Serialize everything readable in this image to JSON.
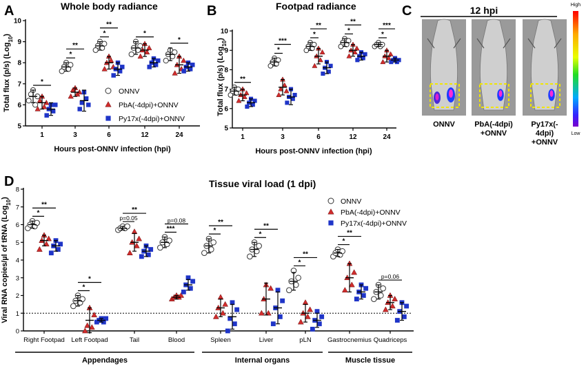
{
  "panels": {
    "A": {
      "letter": "A",
      "title": "Whole body radiance"
    },
    "B": {
      "letter": "B",
      "title": "Footpad radiance"
    },
    "C": {
      "letter": "C",
      "title": "12 hpi",
      "mice": [
        "ONNV",
        "PbA(-4dpi)\n+ONNV",
        "Py17x(-\n4dpi)\n+ONNV"
      ],
      "colorbar": {
        "high": "High",
        "low": "Low"
      }
    },
    "D": {
      "letter": "D",
      "title": "Tissue viral load (1 dpi)"
    }
  },
  "legend_AB": [
    "ONNV",
    "PbA(-4dpi)+ONNV",
    "Py17x(-4dpi)+ONNV"
  ],
  "legend_D": [
    "ONNV",
    "PbA(-4dpi)+ONNV",
    "Py17x(-4dpi)+ONNV"
  ],
  "colors": {
    "onnv": "#ffffff",
    "pba": "#d02c2c",
    "py17x": "#1f35c8",
    "black": "#000000"
  },
  "chart_data": [
    {
      "type": "scatter",
      "title": "Whole body radiance",
      "xlabel": "Hours post-ONNV infection (hpi)",
      "ylabel": "Total flux (p/s) (Log10)",
      "categories": [
        "1",
        "3",
        "6",
        "12",
        "24"
      ],
      "ylim": [
        5,
        10
      ],
      "yticks": [
        5,
        6,
        7,
        8,
        9,
        10
      ],
      "series": [
        {
          "name": "ONNV",
          "marker": "circle",
          "means": [
            6.4,
            7.8,
            8.8,
            8.7,
            8.4
          ],
          "sd": [
            0.3,
            0.2,
            0.2,
            0.3,
            0.3
          ],
          "points": [
            [
              6.2,
              6.5,
              6.7,
              6.0,
              6.4
            ],
            [
              7.6,
              7.8,
              8.0,
              7.7,
              7.9
            ],
            [
              8.6,
              8.8,
              9.0,
              8.7,
              8.9
            ],
            [
              8.4,
              8.7,
              9.0,
              8.6,
              8.8
            ],
            [
              8.1,
              8.4,
              8.6,
              8.3,
              8.5
            ]
          ]
        },
        {
          "name": "PbA(-4dpi)+ONNV",
          "marker": "triangle",
          "means": [
            6.1,
            6.6,
            8.0,
            8.6,
            7.9
          ],
          "sd": [
            0.3,
            0.2,
            0.3,
            0.3,
            0.4
          ],
          "points": [
            [
              5.8,
              6.2,
              6.4,
              5.9,
              6.1
            ],
            [
              6.4,
              6.7,
              6.8,
              6.5,
              6.6
            ],
            [
              7.7,
              8.0,
              8.3,
              8.1,
              7.8
            ],
            [
              8.3,
              8.6,
              8.9,
              8.5,
              8.7
            ],
            [
              7.5,
              7.9,
              8.3,
              7.7,
              8.1
            ]
          ]
        },
        {
          "name": "Py17x(-4dpi)+ONNV",
          "marker": "square",
          "means": [
            5.8,
            6.2,
            7.7,
            8.0,
            7.8
          ],
          "sd": [
            0.3,
            0.5,
            0.3,
            0.2,
            0.2
          ],
          "points": [
            [
              5.5,
              5.8,
              6.0,
              5.7,
              6.0
            ],
            [
              5.8,
              6.1,
              6.6,
              6.3,
              6.0
            ],
            [
              7.4,
              7.7,
              8.0,
              7.6,
              7.8
            ],
            [
              7.8,
              8.0,
              8.2,
              7.9,
              8.1
            ],
            [
              7.6,
              7.8,
              8.0,
              7.7,
              7.9
            ]
          ]
        }
      ],
      "significance": [
        {
          "group": "1",
          "marks": [
            "*"
          ]
        },
        {
          "group": "3",
          "marks": [
            "*",
            "**"
          ]
        },
        {
          "group": "6",
          "marks": [
            "*",
            "**"
          ]
        },
        {
          "group": "12",
          "marks": [
            "*"
          ]
        },
        {
          "group": "24",
          "marks": [
            "*"
          ]
        }
      ],
      "legend": "right"
    },
    {
      "type": "scatter",
      "title": "Footpad radiance",
      "xlabel": "Hours post-ONNV infection (hpi)",
      "ylabel": "Total flux (p/s) (Log10)",
      "categories": [
        "1",
        "3",
        "6",
        "12",
        "24"
      ],
      "ylim": [
        5,
        10
      ],
      "yticks": [
        5,
        6,
        7,
        8,
        9,
        10
      ],
      "series": [
        {
          "name": "ONNV",
          "marker": "circle",
          "means": [
            6.9,
            8.4,
            9.2,
            9.4,
            9.3
          ],
          "sd": [
            0.2,
            0.2,
            0.2,
            0.2,
            0.1
          ],
          "points": [
            [
              6.7,
              6.9,
              7.1,
              6.8,
              7.0
            ],
            [
              8.2,
              8.4,
              8.6,
              8.3,
              8.5
            ],
            [
              9.0,
              9.2,
              9.4,
              9.1,
              9.3
            ],
            [
              9.2,
              9.4,
              9.6,
              9.3,
              9.5
            ],
            [
              9.2,
              9.3,
              9.4,
              9.2,
              9.3
            ]
          ]
        },
        {
          "name": "PbA(-4dpi)+ONNV",
          "marker": "triangle",
          "means": [
            6.7,
            7.1,
            8.7,
            9.0,
            8.7
          ],
          "sd": [
            0.3,
            0.4,
            0.4,
            0.3,
            0.3
          ],
          "points": [
            [
              6.4,
              6.7,
              7.0,
              6.6,
              6.8
            ],
            [
              6.7,
              7.0,
              7.5,
              7.2,
              6.9
            ],
            [
              8.2,
              8.7,
              9.1,
              8.5,
              8.9
            ],
            [
              8.7,
              9.0,
              9.3,
              8.9,
              9.1
            ],
            [
              8.4,
              8.7,
              9.0,
              8.6,
              8.8
            ]
          ]
        },
        {
          "name": "Py17x(-4dpi)+ONNV",
          "marker": "square",
          "means": [
            6.3,
            6.6,
            8.1,
            8.7,
            8.5
          ],
          "sd": [
            0.2,
            0.4,
            0.3,
            0.2,
            0.1
          ],
          "points": [
            [
              6.1,
              6.3,
              6.5,
              6.2,
              6.4
            ],
            [
              6.3,
              6.6,
              7.0,
              6.5,
              6.7
            ],
            [
              7.8,
              8.1,
              8.4,
              7.9,
              8.2
            ],
            [
              8.5,
              8.7,
              8.9,
              8.6,
              8.8
            ],
            [
              8.4,
              8.5,
              8.6,
              8.4,
              8.5
            ]
          ]
        }
      ],
      "significance": [
        {
          "group": "1",
          "marks": [
            "**"
          ]
        },
        {
          "group": "3",
          "marks": [
            "*",
            "***"
          ]
        },
        {
          "group": "6",
          "marks": [
            "*",
            "**"
          ]
        },
        {
          "group": "12",
          "marks": [
            "*",
            "**"
          ]
        },
        {
          "group": "24",
          "marks": [
            "*",
            "***"
          ]
        }
      ]
    },
    {
      "type": "scatter",
      "title": "Tissue viral load (1 dpi)",
      "ylabel": "Viral RNA copies/µl of tRNA (Log10)",
      "categories": [
        "Right Footpad",
        "Left Footpad",
        "Tail",
        "Blood",
        "Spleen",
        "Liver",
        "pLN",
        "Gastrocnemius",
        "Quadriceps"
      ],
      "ylim": [
        0,
        8
      ],
      "yticks": [
        0,
        1,
        2,
        3,
        4,
        5,
        6,
        7,
        8
      ],
      "detection_limit": 1,
      "groups_below_axis": [
        {
          "label": "Appendages",
          "categories": [
            "Right Footpad",
            "Left Footpad",
            "Tail",
            "Blood"
          ]
        },
        {
          "label": "Internal organs",
          "categories": [
            "Spleen",
            "Liver",
            "pLN"
          ]
        },
        {
          "label": "Muscle tissue",
          "categories": [
            "Gastrocnemius",
            "Quadriceps"
          ]
        }
      ],
      "series": [
        {
          "name": "ONNV",
          "marker": "circle",
          "means": [
            6.0,
            1.7,
            5.8,
            5.0,
            4.8,
            4.6,
            2.8,
            4.4,
            2.2
          ],
          "sd": [
            0.2,
            0.3,
            0.1,
            0.3,
            0.4,
            0.4,
            0.5,
            0.2,
            0.4
          ],
          "points": [
            [
              5.8,
              6.0,
              6.2,
              5.9,
              6.1
            ],
            [
              1.4,
              1.7,
              2.0,
              1.6,
              1.8
            ],
            [
              5.7,
              5.8,
              5.9,
              5.8,
              5.9
            ],
            [
              4.7,
              5.0,
              5.3,
              4.9,
              5.1
            ],
            [
              4.4,
              4.8,
              5.2,
              4.6,
              5.0
            ],
            [
              4.2,
              4.6,
              5.0,
              4.5,
              4.8
            ],
            [
              2.3,
              2.8,
              3.4,
              2.6,
              3.0
            ],
            [
              4.2,
              4.4,
              4.6,
              4.3,
              4.5
            ],
            [
              1.8,
              2.2,
              2.6,
              2.0,
              2.4
            ]
          ]
        },
        {
          "name": "PbA(-4dpi)+ONNV",
          "marker": "triangle",
          "means": [
            5.1,
            0.6,
            5.0,
            1.9,
            1.3,
            1.8,
            1.0,
            3.0,
            1.6
          ],
          "sd": [
            0.3,
            0.7,
            0.5,
            0.1,
            0.5,
            0.9,
            0.5,
            0.8,
            0.4
          ],
          "points": [
            [
              4.6,
              5.1,
              5.4,
              4.9,
              5.2
            ],
            [
              0.0,
              0.3,
              1.3,
              0.2,
              0.9
            ],
            [
              4.4,
              5.0,
              5.6,
              4.8,
              5.2
            ],
            [
              1.8,
              1.9,
              2.0,
              1.9,
              2.0
            ],
            [
              0.8,
              1.3,
              1.9,
              1.0,
              1.5
            ],
            [
              1.0,
              1.8,
              2.6,
              1.0,
              2.4
            ],
            [
              0.5,
              1.0,
              1.6,
              0.8,
              1.2
            ],
            [
              2.3,
              3.0,
              3.8,
              2.6,
              3.3
            ],
            [
              1.2,
              1.6,
              2.0,
              1.4,
              1.8
            ]
          ]
        },
        {
          "name": "Py17x(-4dpi)+ONNV",
          "marker": "square",
          "means": [
            4.8,
            0.6,
            4.5,
            2.6,
            0.8,
            1.3,
            0.6,
            2.2,
            1.1
          ],
          "sd": [
            0.3,
            0.1,
            0.3,
            0.3,
            0.7,
            0.9,
            0.4,
            0.4,
            0.5
          ],
          "points": [
            [
              4.4,
              4.8,
              5.1,
              4.6,
              4.9
            ],
            [
              0.5,
              0.6,
              0.7,
              0.5,
              0.7
            ],
            [
              4.2,
              4.5,
              4.8,
              4.3,
              4.6
            ],
            [
              2.2,
              2.6,
              3.0,
              2.4,
              2.8
            ],
            [
              0.0,
              0.7,
              1.6,
              0.4,
              1.2
            ],
            [
              0.4,
              1.3,
              2.3,
              0.8,
              1.7
            ],
            [
              0.1,
              0.6,
              1.1,
              0.4,
              0.8
            ],
            [
              1.8,
              2.2,
              2.6,
              2.0,
              2.4
            ],
            [
              0.6,
              1.1,
              1.6,
              0.8,
              1.4
            ]
          ]
        }
      ],
      "significance": [
        {
          "group": "Right Footpad",
          "marks": [
            "*",
            "**"
          ]
        },
        {
          "group": "Left Footpad",
          "marks": [
            "*",
            "*"
          ]
        },
        {
          "group": "Tail",
          "marks": [
            "p=0.05",
            "**"
          ]
        },
        {
          "group": "Blood",
          "marks": [
            "***",
            "p=0.08"
          ]
        },
        {
          "group": "Spleen",
          "marks": [
            "*",
            "**"
          ]
        },
        {
          "group": "Liver",
          "marks": [
            "*",
            "**"
          ]
        },
        {
          "group": "pLN",
          "marks": [
            "*",
            "**"
          ]
        },
        {
          "group": "Gastrocnemius",
          "marks": [
            "*",
            "**"
          ]
        },
        {
          "group": "Quadriceps",
          "marks": [
            "p=0.06"
          ]
        }
      ],
      "legend": "top-right"
    }
  ]
}
